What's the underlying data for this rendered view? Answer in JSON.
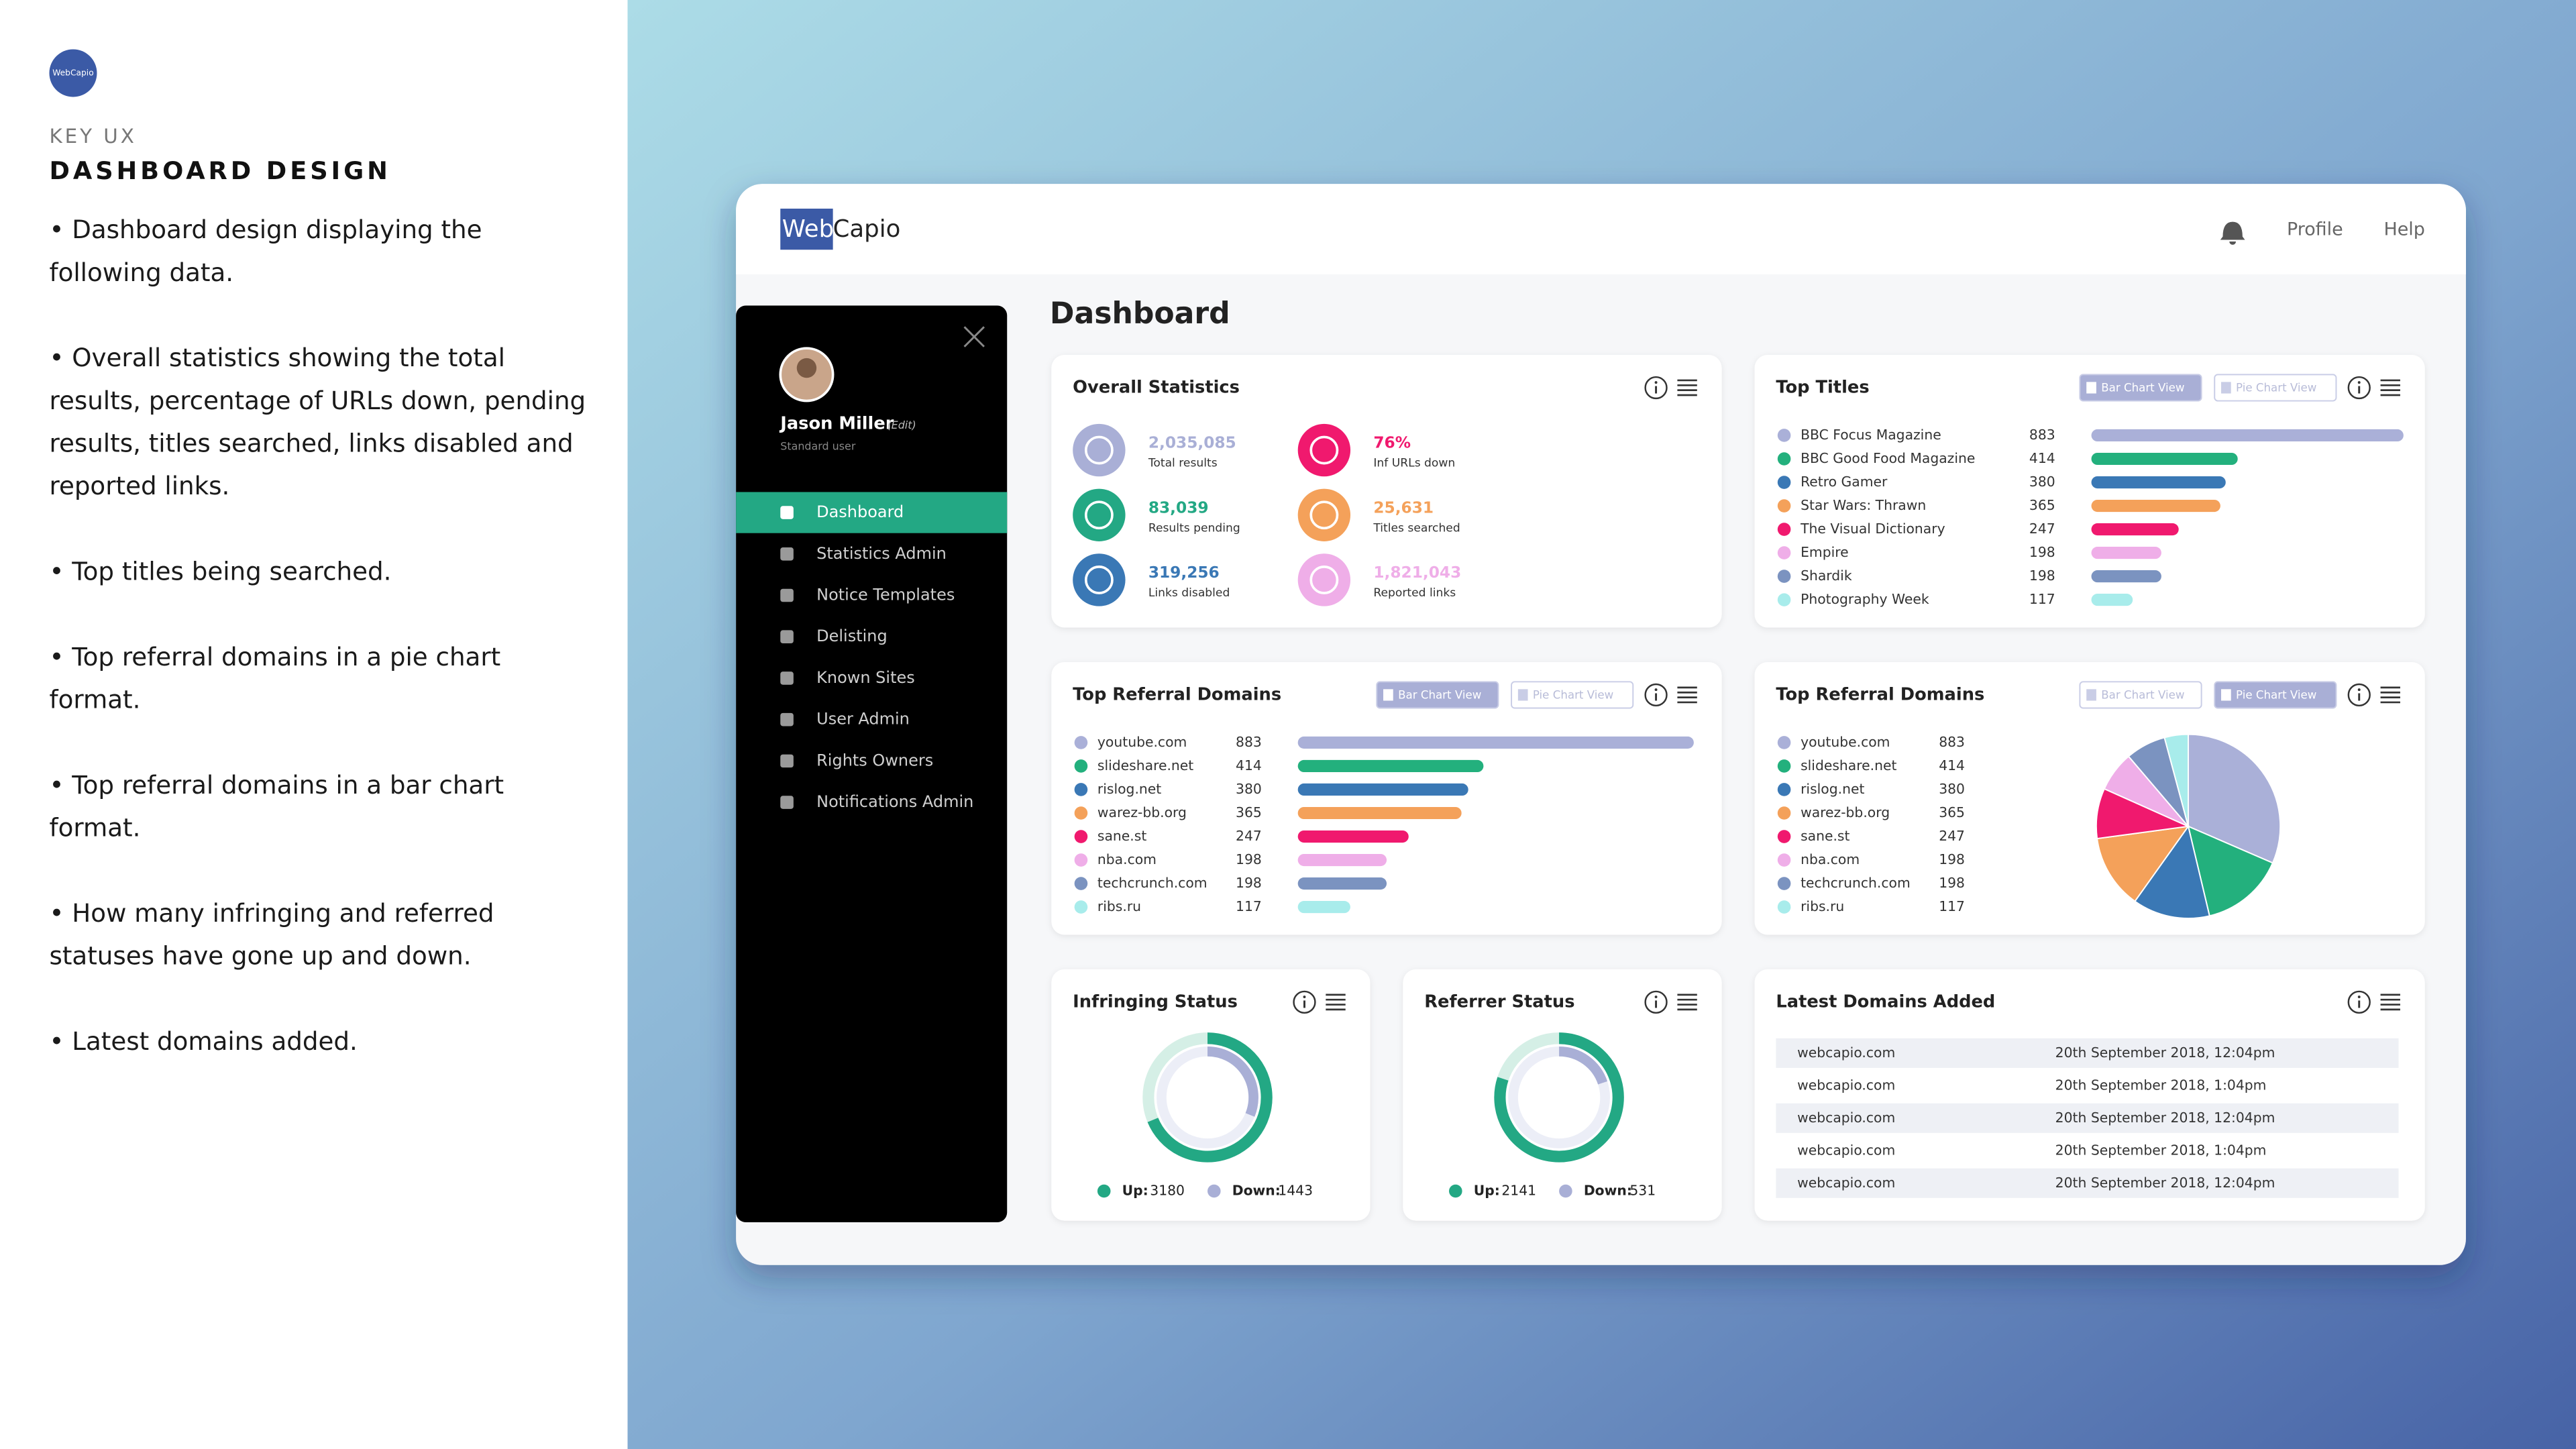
{
  "brand": [
    "Web",
    "Capio"
  ],
  "intro": {
    "eyebrow": "KEY UX",
    "title": "DASHBOARD DESIGN",
    "bullets": [
      "• Dashboard design displaying the following data.",
      "• Overall statistics showing the total results, percentage of URLs down, pending results, titles searched, links disabled and reported links.",
      "• Top titles being searched.",
      "• Top referral domains in a pie chart format.",
      "• Top referral domains in a bar chart format.",
      "• How many infringing and referred statuses have gone up and down.",
      "• Latest domains added."
    ]
  },
  "header": {
    "links": [
      "Profile",
      "Help"
    ]
  },
  "sidebar": {
    "user": "Jason Miller",
    "edit": "(Edit)",
    "role": "Standard user",
    "active": 0,
    "menu": [
      "Dashboard",
      "Statistics Admin",
      "Notice Templates",
      "Delisting",
      "Known Sites",
      "User Admin",
      "Rights Owners",
      "Notifications Admin"
    ]
  },
  "dashboard": {
    "title": "Dashboard",
    "overall": {
      "title": "Overall Statistics",
      "stats": [
        {
          "value": "2,035,085",
          "label": "Total results",
          "color": "#a9afd6"
        },
        {
          "value": "76%",
          "label": "Inf URLs down",
          "color": "#f0196e"
        },
        {
          "value": "83,039",
          "label": "Results pending",
          "color": "#23a884"
        },
        {
          "value": "25,631",
          "label": "Titles searched",
          "color": "#f4a15a"
        },
        {
          "value": "319,256",
          "label": "Links disabled",
          "color": "#3a78b5"
        },
        {
          "value": "1,821,043",
          "label": "Reported links",
          "color": "#efaee8"
        }
      ]
    },
    "top_titles": {
      "title": "Top Titles",
      "views": [
        "Bar Chart View",
        "Pie Chart View"
      ],
      "active_view": 0,
      "items": [
        {
          "name": "BBC Focus Magazine",
          "value": 883,
          "color": "#aab0d8"
        },
        {
          "name": "BBC Good Food Magazine",
          "value": 414,
          "color": "#23b07d"
        },
        {
          "name": "Retro Gamer",
          "value": 380,
          "color": "#3a78b5"
        },
        {
          "name": "Star Wars: Thrawn",
          "value": 365,
          "color": "#f4a15a"
        },
        {
          "name": "The Visual Dictionary",
          "value": 247,
          "color": "#f0196e"
        },
        {
          "name": "Empire",
          "value": 198,
          "color": "#efaee8"
        },
        {
          "name": "Shardik",
          "value": 198,
          "color": "#7b93c0"
        },
        {
          "name": "Photography Week",
          "value": 117,
          "color": "#a8eceb"
        }
      ]
    },
    "referral_bar": {
      "title": "Top Referral Domains",
      "views": [
        "Bar Chart View",
        "Pie Chart View"
      ],
      "active_view": 0,
      "items": [
        {
          "name": "youtube.com",
          "value": 883,
          "color": "#aab0d8"
        },
        {
          "name": "slideshare.net",
          "value": 414,
          "color": "#23b07d"
        },
        {
          "name": "rislog.net",
          "value": 380,
          "color": "#3a78b5"
        },
        {
          "name": "warez-bb.org",
          "value": 365,
          "color": "#f4a15a"
        },
        {
          "name": "sane.st",
          "value": 247,
          "color": "#f0196e"
        },
        {
          "name": "nba.com",
          "value": 198,
          "color": "#efaee8"
        },
        {
          "name": "techcrunch.com",
          "value": 198,
          "color": "#7b93c0"
        },
        {
          "name": "ribs.ru",
          "value": 117,
          "color": "#a8eceb"
        }
      ]
    },
    "referral_pie": {
      "title": "Top Referral Domains",
      "views": [
        "Bar Chart View",
        "Pie Chart View"
      ],
      "active_view": 1,
      "items": [
        {
          "name": "youtube.com",
          "value": 883,
          "color": "#aab0d8"
        },
        {
          "name": "slideshare.net",
          "value": 414,
          "color": "#23b07d"
        },
        {
          "name": "rislog.net",
          "value": 380,
          "color": "#3a78b5"
        },
        {
          "name": "warez-bb.org",
          "value": 365,
          "color": "#f4a15a"
        },
        {
          "name": "sane.st",
          "value": 247,
          "color": "#f0196e"
        },
        {
          "name": "nba.com",
          "value": 198,
          "color": "#efaee8"
        },
        {
          "name": "techcrunch.com",
          "value": 198,
          "color": "#7b93c0"
        },
        {
          "name": "ribs.ru",
          "value": 117,
          "color": "#a8eceb"
        }
      ]
    },
    "infringing": {
      "title": "Infringing Status",
      "up": {
        "label": "Up:",
        "value": 3180,
        "color": "#23a884"
      },
      "down": {
        "label": "Down:",
        "value": 1443,
        "color": "#a9afd6"
      }
    },
    "referrer": {
      "title": "Referrer Status",
      "up": {
        "label": "Up:",
        "value": 2141,
        "color": "#23a884"
      },
      "down": {
        "label": "Down:",
        "value": 531,
        "color": "#a9afd6"
      }
    },
    "latest": {
      "title": "Latest Domains Added",
      "rows": [
        [
          "webcapio.com",
          "20th September 2018, 12:04pm"
        ],
        [
          "webcapio.com",
          "20th September 2018, 1:04pm"
        ],
        [
          "webcapio.com",
          "20th September 2018, 12:04pm"
        ],
        [
          "webcapio.com",
          "20th September 2018, 1:04pm"
        ],
        [
          "webcapio.com",
          "20th September 2018, 12:04pm"
        ]
      ]
    }
  }
}
